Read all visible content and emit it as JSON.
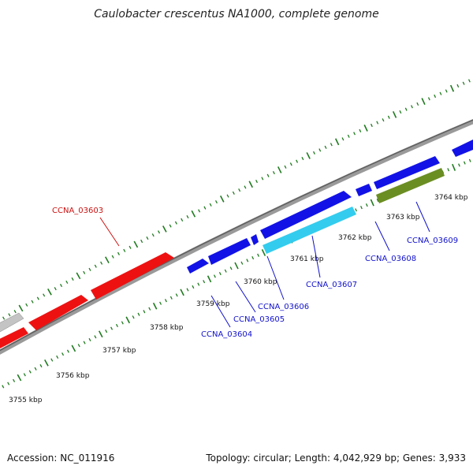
{
  "title": "Caulobacter crescentus NA1000, complete genome",
  "footer": {
    "accession": "Accession: NC_011916",
    "summary": "Topology: circular; Length: 4,042,929 bp; Genes: 3,933"
  },
  "colors": {
    "backbone": "#7a7a7a",
    "ticks": "#1f7a1f",
    "forward": "#1212e6",
    "highlight": "#ee1111",
    "rna": "#33ccee",
    "green_gene": "#6b8e23",
    "grey_gene": "#bfbfbf",
    "blue_label": "#1111cc",
    "red_label": "#cc1111"
  },
  "scale_labels": [
    "3755 kbp",
    "3756 kbp",
    "3757 kbp",
    "3758 kbp",
    "3759 kbp",
    "3760 kbp",
    "3761 kbp",
    "3762 kbp",
    "3763 kbp",
    "3764 kbp"
  ],
  "gene_labels": [
    {
      "text": "CCNA_03603",
      "color": "red"
    },
    {
      "text": "CCNA_03604",
      "color": "blue"
    },
    {
      "text": "CCNA_03605",
      "color": "blue"
    },
    {
      "text": "CCNA_03606",
      "color": "blue"
    },
    {
      "text": "CCNA_03607",
      "color": "blue"
    },
    {
      "text": "CCNA_03608",
      "color": "blue"
    },
    {
      "text": "CCNA_03609",
      "color": "blue"
    }
  ]
}
